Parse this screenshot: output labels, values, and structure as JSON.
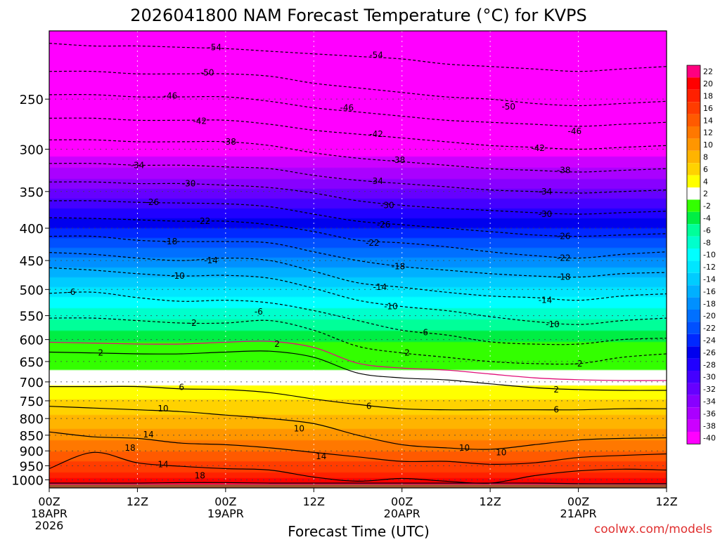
{
  "title": "2026041800 NAM Forecast Temperature (°C) for KVPS",
  "xlabel": "Forecast Time (UTC)",
  "credit": "coolwx.com/models",
  "chart_data": {
    "type": "heatmap",
    "title": "2026041800 NAM Forecast Temperature (°C) for KVPS",
    "xlabel": "Forecast Time (UTC)",
    "ylabel": "",
    "y_scale": "log-pressure (hPa), decreasing upward",
    "ylim": [
      1030,
      195
    ],
    "xlim_hours": [
      0,
      84
    ],
    "x_ticks": [
      {
        "hour": 0,
        "label": "00Z",
        "sub1": "18APR",
        "sub2": "2026"
      },
      {
        "hour": 12,
        "label": "12Z",
        "sub1": "",
        "sub2": ""
      },
      {
        "hour": 24,
        "label": "00Z",
        "sub1": "19APR",
        "sub2": ""
      },
      {
        "hour": 36,
        "label": "12Z",
        "sub1": "",
        "sub2": ""
      },
      {
        "hour": 48,
        "label": "00Z",
        "sub1": "20APR",
        "sub2": ""
      },
      {
        "hour": 60,
        "label": "12Z",
        "sub1": "",
        "sub2": ""
      },
      {
        "hour": 72,
        "label": "00Z",
        "sub1": "21APR",
        "sub2": ""
      },
      {
        "hour": 84,
        "label": "12Z",
        "sub1": "",
        "sub2": ""
      }
    ],
    "y_ticks": [
      250,
      300,
      350,
      400,
      450,
      500,
      550,
      600,
      650,
      700,
      750,
      800,
      850,
      900,
      950,
      1000
    ],
    "grid": true,
    "colorbar": {
      "placement": "right",
      "levels": [
        22,
        20,
        18,
        16,
        14,
        12,
        10,
        8,
        6,
        4,
        2,
        -2,
        -4,
        -6,
        -8,
        -10,
        -12,
        -14,
        -16,
        -18,
        -20,
        -22,
        -24,
        -26,
        -28,
        -30,
        -32,
        -34,
        -36,
        -38,
        -40
      ],
      "colors": [
        "#ff0080",
        "#ff0000",
        "#ff2000",
        "#ff3c00",
        "#ff5a00",
        "#ff7800",
        "#ff9600",
        "#ffb400",
        "#ffd200",
        "#ffff00",
        "#ffffff",
        "#33ff00",
        "#00ee44",
        "#00ff99",
        "#00ffcc",
        "#00ffff",
        "#00e6ff",
        "#00ccff",
        "#00b0ff",
        "#0090ff",
        "#0070ff",
        "#0050ff",
        "#0028ff",
        "#0000ee",
        "#2000ff",
        "#4400ff",
        "#6600ff",
        "#8800ff",
        "#aa00ff",
        "#cc00ff",
        "#ff00ff"
      ]
    },
    "x_hours": [
      0,
      6,
      12,
      18,
      24,
      30,
      36,
      42,
      48,
      54,
      60,
      66,
      72,
      78,
      84
    ],
    "isotherms": [
      {
        "value": 22,
        "p": [
          1012,
          1012,
          1012,
          1010,
          1010,
          1012,
          1012,
          1012,
          1012,
          1012,
          1012,
          1012,
          1014,
          1014,
          1014
        ]
      },
      {
        "value": 18,
        "p": [
          960,
          905,
          940,
          952,
          960,
          965,
          990,
          1005,
          995,
          1005,
          1012,
          985,
          968,
          962,
          965
        ]
      },
      {
        "value": 14,
        "p": [
          840,
          855,
          860,
          875,
          880,
          890,
          905,
          920,
          935,
          935,
          945,
          940,
          922,
          915,
          910
        ]
      },
      {
        "value": 10,
        "p": [
          765,
          770,
          775,
          780,
          790,
          800,
          815,
          850,
          880,
          890,
          895,
          880,
          865,
          860,
          858
        ]
      },
      {
        "value": 6,
        "p": [
          712,
          712,
          712,
          718,
          720,
          728,
          745,
          760,
          772,
          775,
          775,
          775,
          775,
          772,
          772
        ]
      },
      {
        "value": 2,
        "p": [
          628,
          630,
          632,
          632,
          628,
          626,
          640,
          678,
          690,
          695,
          705,
          715,
          720,
          722,
          722
        ]
      },
      {
        "value": -2,
        "p": [
          555,
          555,
          560,
          565,
          565,
          560,
          580,
          615,
          630,
          640,
          650,
          655,
          655,
          640,
          632
        ]
      },
      {
        "value": -6,
        "p": [
          507,
          505,
          515,
          522,
          520,
          525,
          540,
          560,
          580,
          590,
          605,
          610,
          610,
          600,
          597
        ]
      },
      {
        "value": -10,
        "p": [
          462,
          466,
          472,
          476,
          475,
          480,
          498,
          520,
          532,
          540,
          552,
          562,
          568,
          560,
          555
        ]
      },
      {
        "value": -14,
        "p": [
          437,
          440,
          446,
          450,
          446,
          450,
          468,
          488,
          496,
          505,
          512,
          515,
          520,
          512,
          508
        ]
      },
      {
        "value": -18,
        "p": [
          412,
          412,
          418,
          420,
          420,
          422,
          436,
          450,
          460,
          466,
          472,
          476,
          478,
          472,
          470
        ]
      },
      {
        "value": -22,
        "p": [
          385,
          386,
          388,
          390,
          390,
          395,
          405,
          418,
          422,
          428,
          436,
          442,
          446,
          440,
          436
        ]
      },
      {
        "value": -26,
        "p": [
          362,
          362,
          364,
          365,
          366,
          370,
          380,
          390,
          395,
          400,
          405,
          410,
          412,
          410,
          408
        ]
      },
      {
        "value": -30,
        "p": [
          338,
          338,
          340,
          340,
          342,
          345,
          352,
          362,
          368,
          372,
          375,
          378,
          380,
          378,
          376
        ]
      },
      {
        "value": -34,
        "p": [
          316,
          316,
          318,
          318,
          320,
          322,
          330,
          336,
          340,
          344,
          348,
          350,
          352,
          350,
          348
        ]
      },
      {
        "value": -38,
        "p": [
          290,
          290,
          292,
          292,
          292,
          296,
          304,
          310,
          314,
          318,
          322,
          324,
          326,
          324,
          322
        ]
      },
      {
        "value": -42,
        "p": [
          268,
          268,
          270,
          270,
          270,
          274,
          280,
          284,
          288,
          292,
          296,
          298,
          300,
          298,
          296
        ]
      },
      {
        "value": -46,
        "p": [
          246,
          246,
          248,
          248,
          248,
          252,
          258,
          262,
          266,
          270,
          272,
          274,
          276,
          274,
          272
        ]
      },
      {
        "value": -50,
        "p": [
          226,
          226,
          228,
          228,
          228,
          230,
          236,
          240,
          244,
          248,
          250,
          254,
          256,
          254,
          252
        ]
      },
      {
        "value": -54,
        "p": [
          204,
          206,
          206,
          207,
          208,
          210,
          212,
          214,
          216,
          220,
          222,
          224,
          226,
          224,
          222
        ]
      }
    ],
    "contour_labels": [
      {
        "value": -54,
        "hour": 22.5,
        "p": 207
      },
      {
        "value": -54,
        "hour": 44.5,
        "p": 213
      },
      {
        "value": -50,
        "hour": 21.5,
        "p": 227
      },
      {
        "value": -50,
        "hour": 62.5,
        "p": 257
      },
      {
        "value": -46,
        "hour": 16.5,
        "p": 247
      },
      {
        "value": -46,
        "hour": 40.5,
        "p": 258
      },
      {
        "value": -46,
        "hour": 71.5,
        "p": 281
      },
      {
        "value": -42,
        "hour": 20.5,
        "p": 271
      },
      {
        "value": -42,
        "hour": 44.5,
        "p": 284
      },
      {
        "value": -42,
        "hour": 66.5,
        "p": 299
      },
      {
        "value": -38,
        "hour": 24.5,
        "p": 292
      },
      {
        "value": -38,
        "hour": 47.5,
        "p": 312
      },
      {
        "value": -38,
        "hour": 70.0,
        "p": 324
      },
      {
        "value": -34,
        "hour": 12.0,
        "p": 318
      },
      {
        "value": -34,
        "hour": 44.5,
        "p": 337
      },
      {
        "value": -34,
        "hour": 67.5,
        "p": 350
      },
      {
        "value": -30,
        "hour": 19.0,
        "p": 340
      },
      {
        "value": -30,
        "hour": 46.0,
        "p": 368
      },
      {
        "value": -30,
        "hour": 67.5,
        "p": 380
      },
      {
        "value": -26,
        "hour": 14.0,
        "p": 364
      },
      {
        "value": -26,
        "hour": 45.5,
        "p": 395
      },
      {
        "value": -26,
        "hour": 70.0,
        "p": 412
      },
      {
        "value": -22,
        "hour": 21.0,
        "p": 390
      },
      {
        "value": -22,
        "hour": 44.0,
        "p": 422
      },
      {
        "value": -22,
        "hour": 70.0,
        "p": 446
      },
      {
        "value": -18,
        "hour": 16.5,
        "p": 420
      },
      {
        "value": -18,
        "hour": 47.5,
        "p": 460
      },
      {
        "value": -18,
        "hour": 70.0,
        "p": 478
      },
      {
        "value": -14,
        "hour": 22.0,
        "p": 450
      },
      {
        "value": -14,
        "hour": 45.0,
        "p": 496
      },
      {
        "value": -14,
        "hour": 67.5,
        "p": 520
      },
      {
        "value": -10,
        "hour": 17.5,
        "p": 476
      },
      {
        "value": -10,
        "hour": 46.5,
        "p": 532
      },
      {
        "value": -10,
        "hour": 68.5,
        "p": 568
      },
      {
        "value": -6,
        "hour": 3.0,
        "p": 505
      },
      {
        "value": -6,
        "hour": 28.5,
        "p": 542
      },
      {
        "value": -6,
        "hour": 51.0,
        "p": 585
      },
      {
        "value": -2,
        "hour": 19.5,
        "p": 565
      },
      {
        "value": -2,
        "hour": 48.5,
        "p": 630
      },
      {
        "value": -2,
        "hour": 72.0,
        "p": 655
      },
      {
        "value": 2,
        "hour": 7.0,
        "p": 630
      },
      {
        "value": 2,
        "hour": 31.0,
        "p": 610
      },
      {
        "value": 2,
        "hour": 69.0,
        "p": 720
      },
      {
        "value": 6,
        "hour": 18.0,
        "p": 714
      },
      {
        "value": 6,
        "hour": 43.5,
        "p": 765
      },
      {
        "value": 6,
        "hour": 69.0,
        "p": 775
      },
      {
        "value": 10,
        "hour": 15.5,
        "p": 772
      },
      {
        "value": 10,
        "hour": 34.0,
        "p": 830
      },
      {
        "value": 10,
        "hour": 56.5,
        "p": 890
      },
      {
        "value": 10,
        "hour": 61.5,
        "p": 905
      },
      {
        "value": 14,
        "hour": 13.5,
        "p": 848
      },
      {
        "value": 14,
        "hour": 37.0,
        "p": 918
      },
      {
        "value": 14,
        "hour": 15.5,
        "p": 945
      },
      {
        "value": 18,
        "hour": 11.0,
        "p": 890
      },
      {
        "value": 18,
        "hour": 20.5,
        "p": 985
      }
    ]
  }
}
